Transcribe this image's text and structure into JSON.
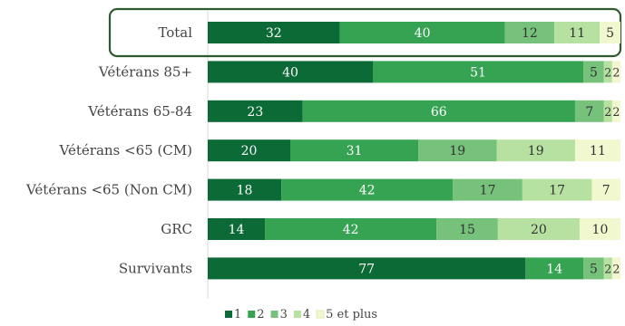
{
  "chart_data": {
    "type": "bar",
    "orientation": "horizontal",
    "stacked": true,
    "percent_stacked": true,
    "highlighted_category": "Total",
    "categories": [
      "Total",
      "Vétérans 85+",
      "Vétérans 65-84",
      "Vétérans <65 (CM)",
      "Vétérans <65 (Non CM)",
      "GRC",
      "Survivants"
    ],
    "series": [
      {
        "name": "1",
        "color": "#0b6a35",
        "label_color": "#ffffff",
        "values": [
          32,
          40,
          23,
          20,
          18,
          14,
          77
        ]
      },
      {
        "name": "2",
        "color": "#36a353",
        "label_color": "#ffffff",
        "values": [
          40,
          51,
          66,
          31,
          42,
          42,
          14
        ]
      },
      {
        "name": "3",
        "color": "#76c27b",
        "label_color": "#333333",
        "values": [
          12,
          5,
          7,
          19,
          17,
          15,
          5
        ]
      },
      {
        "name": "4",
        "color": "#b6e1a1",
        "label_color": "#333333",
        "values": [
          11,
          2,
          2,
          19,
          17,
          20,
          2
        ]
      },
      {
        "name": "5 et plus",
        "color": "#f1f7cf",
        "label_color": "#333333",
        "values": [
          5,
          2,
          2,
          11,
          7,
          10,
          2
        ]
      }
    ],
    "title": "",
    "xlabel": "",
    "ylabel": "",
    "legend_position": "bottom",
    "grid": false
  }
}
